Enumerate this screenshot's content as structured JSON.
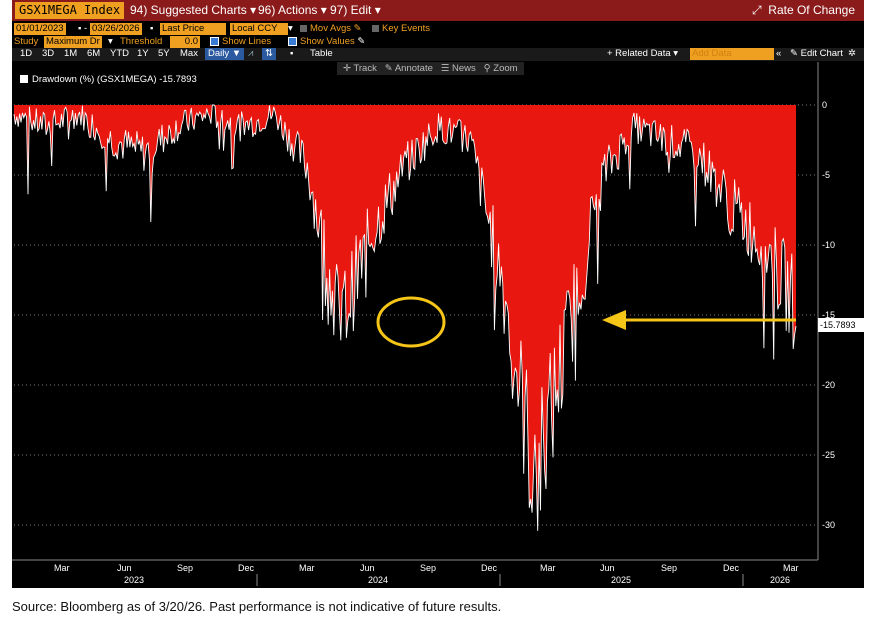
{
  "toolbar": {
    "ticker": "GSX1MEGA Index",
    "suggested": "94) Suggested Charts",
    "actions": "96) Actions",
    "edit": "97) Edit",
    "rate_of_change": "Rate Of Change",
    "start_date": "01/01/2023",
    "end_date": "03/26/2026",
    "price_field": "Last Price",
    "currency": "Local CCY",
    "mov_avgs": "Mov Avgs",
    "key_events": "Key Events",
    "study_label": "Study",
    "study_value": "Maximum Dr",
    "threshold_label": "Threshold",
    "threshold_value": "0.0",
    "show_lines": "Show Lines",
    "show_values": "Show Values",
    "periods": [
      "1D",
      "3D",
      "1M",
      "6M",
      "YTD",
      "1Y",
      "5Y",
      "Max"
    ],
    "frequency": "Daily",
    "table": "Table",
    "related_data": "+ Related Data",
    "add_data": "Add Data",
    "edit_chart": "Edit Chart",
    "track": "Track",
    "annotate": "Annotate",
    "news": "News",
    "zoom": "Zoom"
  },
  "legend": "Drawdown (%) (GSX1MEGA) -15.7893",
  "last_value_label": "-15.7893",
  "caption": "Source: Bloomberg as of 3/20/26. Past performance is not indicative of future results.",
  "colors": {
    "fill": "#e8170f",
    "line": "#ffffff",
    "highlight": "#f5c518"
  },
  "chart_data": {
    "type": "area",
    "ylim": [
      -32,
      1
    ],
    "y_ticks": [
      0,
      -5,
      -10,
      -15,
      -20,
      -25,
      -30
    ],
    "month_ticks": [
      "Mar",
      "Jun",
      "Sep",
      "Dec",
      "Mar",
      "Jun",
      "Sep",
      "Dec",
      "Mar",
      "Jun",
      "Sep",
      "Dec",
      "Mar"
    ],
    "year_labels": [
      "2023",
      "2024",
      "2025",
      "2026"
    ],
    "x": [
      "2023-01",
      "2023-03",
      "2023-05",
      "2023-07",
      "2023-09",
      "2023-11",
      "2024-01",
      "2024-03",
      "2024-05",
      "2024-07",
      "2024-08",
      "2024-09",
      "2024-10",
      "2024-12",
      "2025-02",
      "2025-03",
      "2025-04",
      "2025-05",
      "2025-06",
      "2025-08",
      "2025-10",
      "2025-12",
      "2026-01",
      "2026-02",
      "2026-03"
    ],
    "values": [
      -1,
      -2,
      -1,
      -3,
      -4,
      -2,
      -1,
      -2,
      -1,
      -5,
      -17.2,
      -10,
      -5,
      -2,
      -3,
      -14,
      -29.5,
      -18,
      -6,
      -2,
      -3,
      -4,
      -8,
      -11,
      -15.79
    ],
    "annotations": [
      "circle at 2024 low",
      "arrow to last value"
    ]
  }
}
